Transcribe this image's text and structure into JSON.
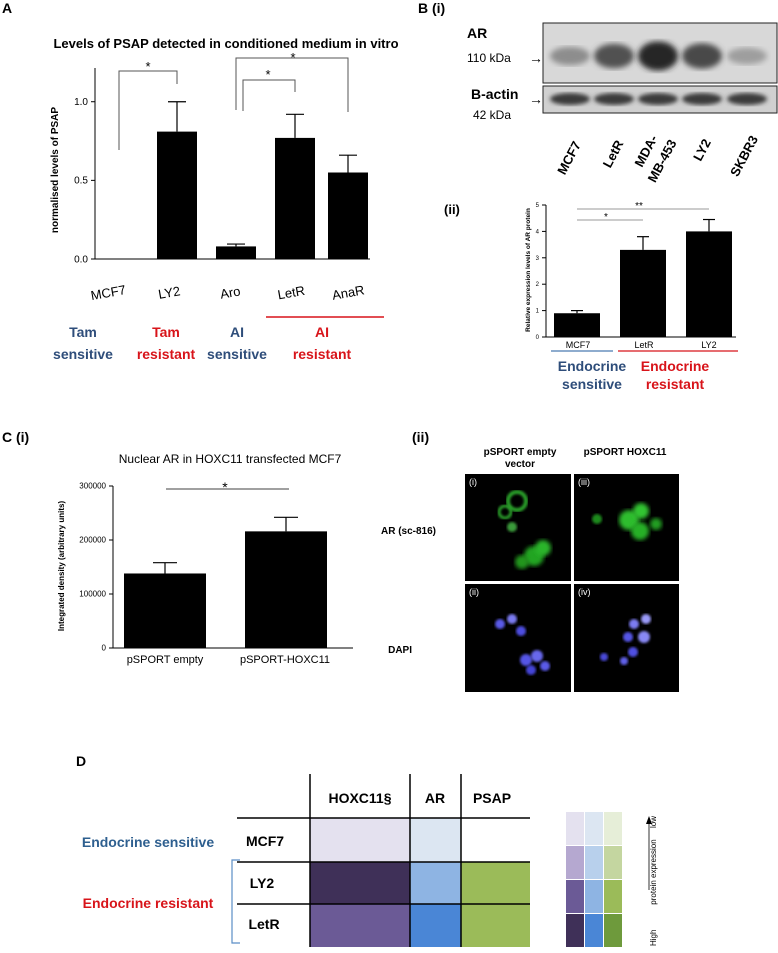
{
  "panel_a": {
    "letter": "A",
    "title": "Levels of PSAP detected in conditioned medium in vitro",
    "ylabel": "normalised levels of PSAP",
    "categories": [
      {
        "label": "MCF7"
      },
      {
        "label": "LY2"
      },
      {
        "label": "Aro"
      },
      {
        "label": "LetR"
      },
      {
        "label": "AnaR"
      }
    ],
    "sig_marks": [
      {
        "label": "*"
      },
      {
        "label": "*"
      },
      {
        "label": "*"
      }
    ],
    "groups": [
      {
        "line1": "Tam",
        "line2": "sensitive",
        "color": "#2e4d7a"
      },
      {
        "line1": "Tam",
        "line2": "resistant",
        "color": "#d8141a"
      },
      {
        "line1": "AI",
        "line2": "sensitive",
        "color": "#2e4d7a"
      },
      {
        "line1": "AI",
        "line2": "resistant",
        "color": "#d8141a"
      }
    ]
  },
  "panel_bi": {
    "letter": "B (i)",
    "blots": [
      {
        "name": "AR",
        "size": "110 kDa",
        "arrow": "→"
      },
      {
        "name": "B-actin",
        "size": "42 kDa",
        "arrow": "→"
      }
    ],
    "lanes": [
      {
        "label": "MCF7"
      },
      {
        "label": "LetR"
      },
      {
        "label": "MDA-MB-453",
        "line1": "MDA-",
        "line2": "MB-453"
      },
      {
        "label": "LY2"
      },
      {
        "label": "SKBR3"
      }
    ],
    "ar_band_intensity": [
      0.35,
      0.7,
      0.95,
      0.75,
      0.25
    ]
  },
  "panel_bii": {
    "letter": "(ii)",
    "ylabel": "Relative expression levels of AR protein",
    "categories": [
      {
        "label": "MCF7"
      },
      {
        "label": "LetR"
      },
      {
        "label": "LY2"
      }
    ],
    "sig_marks": [
      {
        "label": "*"
      },
      {
        "label": "**"
      }
    ],
    "groups": [
      {
        "line1": "Endocrine",
        "line2": "sensitive",
        "color": "#2e4d7a"
      },
      {
        "line1": "Endocrine",
        "line2": "resistant",
        "color": "#d8141a"
      }
    ]
  },
  "panel_ci": {
    "letter": "C (i)",
    "title": "Nuclear AR in HOXC11 transfected MCF7",
    "ylabel": "Integrated density (arbitrary units)",
    "categories": [
      {
        "label": "pSPORT empty"
      },
      {
        "label": "pSPORT-HOXC11"
      }
    ],
    "sig_marks": [
      {
        "label": "*"
      }
    ]
  },
  "panel_cii": {
    "letter": "(ii)",
    "col_headers": [
      {
        "line1": "pSPORT empty",
        "line2": "vector"
      },
      {
        "line1": "pSPORT HOXC11",
        "line2": ""
      }
    ],
    "row_labels": [
      "AR (sc-816)",
      "DAPI"
    ],
    "tile_labels": [
      "(i)",
      "(iii)",
      "(ii)",
      "(iv)"
    ]
  },
  "panel_d": {
    "letter": "D",
    "columns": [
      "HOXC11§",
      "AR",
      "PSAP"
    ],
    "rows": [
      {
        "label": "MCF7",
        "group": "Endocrine sensitive",
        "levels": [
          1,
          1,
          0
        ]
      },
      {
        "label": "LY2",
        "group": "Endocrine resistant",
        "levels": [
          4,
          3,
          3
        ]
      },
      {
        "label": "LetR",
        "group": "Endocrine resistant",
        "levels": [
          3,
          4,
          3
        ]
      }
    ],
    "group_labels": [
      {
        "text": "Endocrine sensitive",
        "color": "#2e5f8f"
      },
      {
        "text": "Endocrine resistant",
        "color": "#d8141a"
      }
    ],
    "colors": {
      "hoxc11": [
        "#ffffff",
        "#e4e1ef",
        "#b5a8d0",
        "#6b5a96",
        "#3f3058"
      ],
      "ar": [
        "#ffffff",
        "#dce6f2",
        "#b8d0ec",
        "#8eb4e3",
        "#4a86d6"
      ],
      "psap": [
        "#ffffff",
        "#e6eed8",
        "#c4d6a0",
        "#9bbb59",
        "#6e9a3c"
      ]
    },
    "legend": {
      "low": "low",
      "high": "High",
      "axis": "protein expression"
    }
  },
  "chart_data": [
    {
      "type": "bar",
      "title": "Levels of PSAP detected in conditioned medium in vitro",
      "ylabel": "normalised levels of PSAP",
      "categories": [
        "MCF7",
        "LY2",
        "Aro",
        "LetR",
        "AnaR"
      ],
      "values": [
        0.0,
        0.81,
        0.08,
        0.77,
        0.55
      ],
      "errors": [
        0.0,
        0.19,
        0.015,
        0.15,
        0.11
      ],
      "ylim": [
        0,
        1.1
      ],
      "yticks": [
        0.0,
        0.5,
        1.0
      ],
      "significance": [
        {
          "from": "MCF7",
          "to": "LY2",
          "label": "*"
        },
        {
          "from": "Aro",
          "to": "LetR",
          "label": "*"
        },
        {
          "from": "Aro",
          "to": "AnaR",
          "label": "*"
        }
      ]
    },
    {
      "type": "bar",
      "ylabel": "Relative expression levels of AR protein",
      "categories": [
        "MCF7",
        "LetR",
        "LY2"
      ],
      "values": [
        0.9,
        3.3,
        4.0
      ],
      "errors": [
        0.1,
        0.5,
        0.45
      ],
      "ylim": [
        0,
        5
      ],
      "yticks": [
        0,
        1,
        2,
        3,
        4,
        5
      ],
      "significance": [
        {
          "from": "MCF7",
          "to": "LetR",
          "label": "*"
        },
        {
          "from": "MCF7",
          "to": "LY2",
          "label": "**"
        }
      ]
    },
    {
      "type": "bar",
      "title": "Nuclear AR in HOXC11 transfected MCF7",
      "ylabel": "Integrated density (arbitrary units)",
      "categories": [
        "pSPORT empty",
        "pSPORT-HOXC11"
      ],
      "values": [
        138000,
        216000
      ],
      "errors": [
        20000,
        26000
      ],
      "ylim": [
        0,
        300000
      ],
      "yticks": [
        0,
        100000,
        200000,
        300000
      ],
      "significance": [
        {
          "from": "pSPORT empty",
          "to": "pSPORT-HOXC11",
          "label": "*"
        }
      ]
    }
  ]
}
